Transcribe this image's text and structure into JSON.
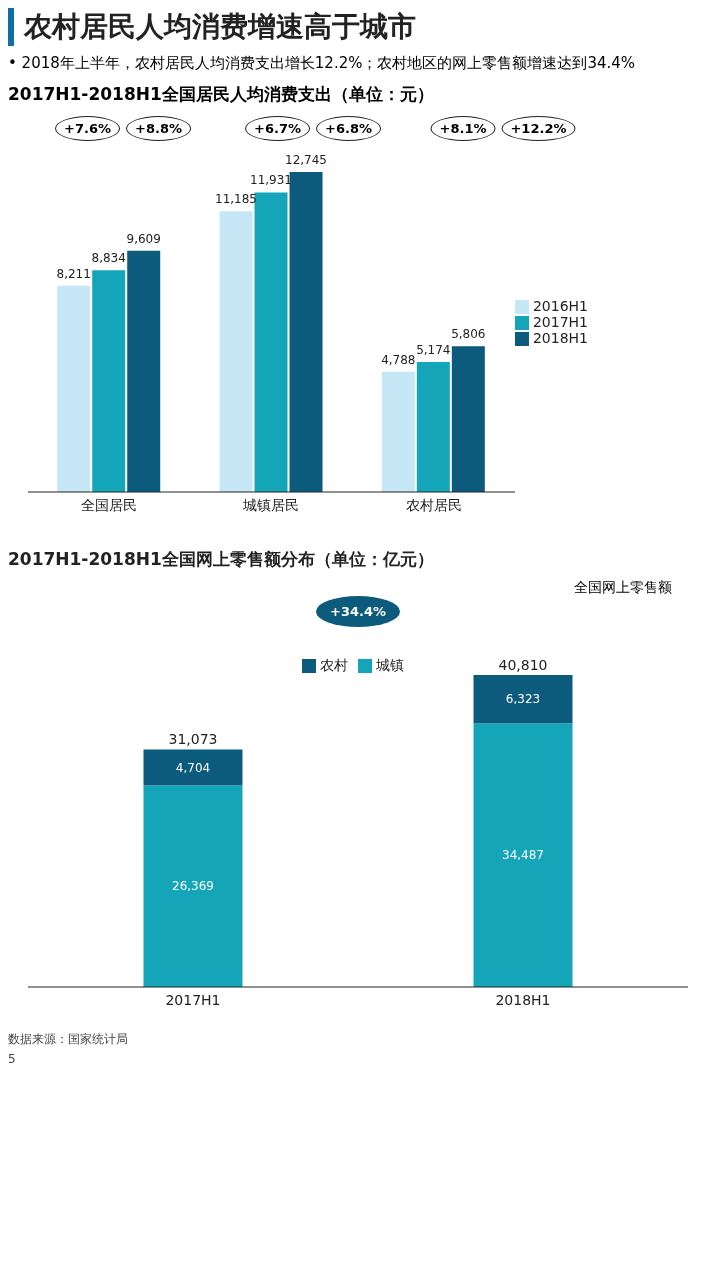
{
  "chart_data": [
    {
      "type": "bar",
      "title": "农村居民人均消费增速高于城市",
      "subtitle": "2017H1-2018H1全国居民人均消费支出（单位：元）",
      "categories": [
        "全国居民",
        "城镇居民",
        "农村居民"
      ],
      "series": [
        {
          "name": "2016H1",
          "color": "#c6e7f5",
          "values": [
            8211,
            11185,
            4788
          ],
          "value_labels": [
            "8,211",
            "11,185",
            "4,788"
          ]
        },
        {
          "name": "2017H1",
          "color": "#14a6b8",
          "values": [
            8834,
            11931,
            5174
          ],
          "value_labels": [
            "8,834",
            "11,931",
            "5,174"
          ]
        },
        {
          "name": "2018H1",
          "color": "#0d5b7c",
          "values": [
            9609,
            12745,
            5806
          ],
          "value_labels": [
            "9,609",
            "12,745",
            "5,806"
          ]
        }
      ],
      "legend": "right",
      "grid": false,
      "annotations": [
        "• 2018年上半年，农村居民人均消费支出增长12.2%；农村地区的网上零售额增速达到34.4%",
        "+7.6%",
        "+8.8%",
        "+6.7%",
        "+6.8%",
        "+8.1%",
        "+12.2%"
      ]
    },
    {
      "type": "bar",
      "title": "2017H1-2018H1全国网上零售额分布（单位：亿元）",
      "categories": [
        "2017H1",
        "2018H1"
      ],
      "series": [
        {
          "name": "城镇",
          "color": "#14a6b8",
          "values": [
            26369,
            34487
          ],
          "value_labels": [
            "26,369",
            "34,487"
          ]
        },
        {
          "name": "农村",
          "color": "#0d5b7c",
          "values": [
            4704,
            6323
          ],
          "value_labels": [
            "4,704",
            "6,323"
          ]
        }
      ],
      "stacked": true,
      "totals": [
        "31,073",
        "40,810"
      ],
      "legend": "top",
      "grid": false,
      "annotations": [
        "全国网上零售额",
        "+34.4%",
        "数据来源：国家统计局",
        "5"
      ]
    }
  ]
}
